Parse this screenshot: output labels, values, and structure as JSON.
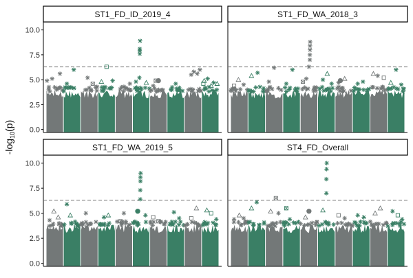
{
  "colors": {
    "grey": "#737878",
    "green": "#3a7f65",
    "threshold": "#6e6e6e",
    "strip_border": "#000000",
    "axis": "#000000"
  },
  "y_axis_label": {
    "prefix": "-log",
    "subscript": "10",
    "suffix": "(p)"
  },
  "chart_data": [
    {
      "type": "scatter",
      "subtitle": "ST1_FD_ID_2019_4",
      "ylim": [
        -0.3,
        10.8
      ],
      "yticks": [
        "0.0",
        "2.5",
        "5.0",
        "7.5",
        "10.0"
      ],
      "threshold": 6.3,
      "chromosome_count": 10,
      "background_level": 4.0,
      "outliers": [
        {
          "chr": 1,
          "pos": 0.05,
          "y": 4.9,
          "shape": "star"
        },
        {
          "chr": 1,
          "pos": 0.35,
          "y": 5.1,
          "shape": "star"
        },
        {
          "chr": 1,
          "pos": 0.8,
          "y": 5.6,
          "shape": "star"
        },
        {
          "chr": 2,
          "pos": 0.2,
          "y": 4.6,
          "shape": "star"
        },
        {
          "chr": 2,
          "pos": 0.6,
          "y": 6.0,
          "shape": "star"
        },
        {
          "chr": 3,
          "pos": 0.4,
          "y": 5.2,
          "shape": "star"
        },
        {
          "chr": 3,
          "pos": 0.7,
          "y": 4.6,
          "shape": "square-x"
        },
        {
          "chr": 4,
          "pos": 0.2,
          "y": 4.8,
          "shape": "triangle"
        },
        {
          "chr": 4,
          "pos": 0.5,
          "y": 6.3,
          "shape": "square"
        },
        {
          "chr": 4,
          "pos": 0.85,
          "y": 4.9,
          "shape": "star"
        },
        {
          "chr": 5,
          "pos": 0.5,
          "y": 4.3,
          "shape": "star"
        },
        {
          "chr": 5,
          "pos": 0.85,
          "y": 4.6,
          "shape": "star"
        },
        {
          "chr": 6,
          "pos": 0.2,
          "y": 4.8,
          "shape": "star"
        },
        {
          "chr": 6,
          "pos": 0.4,
          "y": 5.2,
          "shape": "star"
        },
        {
          "chr": 6,
          "pos": 0.42,
          "y": 7.6,
          "shape": "star"
        },
        {
          "chr": 6,
          "pos": 0.42,
          "y": 7.9,
          "shape": "star"
        },
        {
          "chr": 6,
          "pos": 0.42,
          "y": 8.1,
          "shape": "star"
        },
        {
          "chr": 6,
          "pos": 0.44,
          "y": 8.9,
          "shape": "star"
        },
        {
          "chr": 6,
          "pos": 0.8,
          "y": 4.7,
          "shape": "triangle"
        },
        {
          "chr": 7,
          "pos": 0.2,
          "y": 4.4,
          "shape": "star"
        },
        {
          "chr": 7,
          "pos": 0.35,
          "y": 4.9,
          "shape": "square-x"
        },
        {
          "chr": 7,
          "pos": 0.5,
          "y": 4.9,
          "shape": "octagon"
        },
        {
          "chr": 8,
          "pos": 0.5,
          "y": 4.6,
          "shape": "star"
        },
        {
          "chr": 9,
          "pos": 0.4,
          "y": 5.5,
          "shape": "star"
        },
        {
          "chr": 9,
          "pos": 0.55,
          "y": 5.8,
          "shape": "star"
        },
        {
          "chr": 9,
          "pos": 0.75,
          "y": 5.6,
          "shape": "star"
        },
        {
          "chr": 9,
          "pos": 0.9,
          "y": 6.0,
          "shape": "star"
        },
        {
          "chr": 10,
          "pos": 0.1,
          "y": 4.6,
          "shape": "square"
        },
        {
          "chr": 10,
          "pos": 0.15,
          "y": 4.9,
          "shape": "triangle"
        },
        {
          "chr": 10,
          "pos": 0.35,
          "y": 5.1,
          "shape": "star"
        },
        {
          "chr": 10,
          "pos": 0.55,
          "y": 4.4,
          "shape": "triangle"
        },
        {
          "chr": 10,
          "pos": 0.7,
          "y": 4.7,
          "shape": "star"
        },
        {
          "chr": 10,
          "pos": 0.9,
          "y": 4.6,
          "shape": "triangle"
        }
      ]
    },
    {
      "type": "scatter",
      "subtitle": "ST1_FD_WA_2018_3",
      "ylim": [
        -0.3,
        10.8
      ],
      "yticks": [
        "0.0",
        "2.5",
        "5.0",
        "7.5",
        "10.0"
      ],
      "threshold": 6.3,
      "chromosome_count": 10,
      "background_level": 4.0,
      "outliers": [
        {
          "chr": 1,
          "pos": 0.2,
          "y": 4.4,
          "shape": "square"
        },
        {
          "chr": 1,
          "pos": 0.45,
          "y": 5.0,
          "shape": "triangle"
        },
        {
          "chr": 1,
          "pos": 0.75,
          "y": 4.5,
          "shape": "star"
        },
        {
          "chr": 2,
          "pos": 0.2,
          "y": 5.4,
          "shape": "triangle"
        },
        {
          "chr": 2,
          "pos": 0.55,
          "y": 5.7,
          "shape": "star"
        },
        {
          "chr": 3,
          "pos": 0.2,
          "y": 4.8,
          "shape": "star"
        },
        {
          "chr": 3,
          "pos": 0.5,
          "y": 6.2,
          "shape": "star"
        },
        {
          "chr": 4,
          "pos": 0.2,
          "y": 4.6,
          "shape": "star"
        },
        {
          "chr": 4,
          "pos": 0.55,
          "y": 6.0,
          "shape": "star"
        },
        {
          "chr": 5,
          "pos": 0.15,
          "y": 4.8,
          "shape": "square-x"
        },
        {
          "chr": 5,
          "pos": 0.35,
          "y": 5.1,
          "shape": "star"
        },
        {
          "chr": 5,
          "pos": 0.5,
          "y": 6.3,
          "shape": "star"
        },
        {
          "chr": 5,
          "pos": 0.55,
          "y": 7.0,
          "shape": "star"
        },
        {
          "chr": 5,
          "pos": 0.55,
          "y": 7.5,
          "shape": "star"
        },
        {
          "chr": 5,
          "pos": 0.56,
          "y": 8.0,
          "shape": "star"
        },
        {
          "chr": 5,
          "pos": 0.56,
          "y": 8.4,
          "shape": "star"
        },
        {
          "chr": 5,
          "pos": 0.57,
          "y": 8.8,
          "shape": "star"
        },
        {
          "chr": 6,
          "pos": 0.3,
          "y": 5.0,
          "shape": "star"
        },
        {
          "chr": 6,
          "pos": 0.55,
          "y": 5.6,
          "shape": "triangle"
        },
        {
          "chr": 6,
          "pos": 0.8,
          "y": 4.6,
          "shape": "star"
        },
        {
          "chr": 7,
          "pos": 0.2,
          "y": 4.7,
          "shape": "star"
        },
        {
          "chr": 7,
          "pos": 0.3,
          "y": 4.9,
          "shape": "octagon"
        },
        {
          "chr": 7,
          "pos": 0.55,
          "y": 5.1,
          "shape": "triangle"
        },
        {
          "chr": 8,
          "pos": 0.3,
          "y": 4.6,
          "shape": "star"
        },
        {
          "chr": 8,
          "pos": 0.6,
          "y": 4.8,
          "shape": "star"
        },
        {
          "chr": 9,
          "pos": 0.2,
          "y": 5.6,
          "shape": "triangle"
        },
        {
          "chr": 9,
          "pos": 0.45,
          "y": 5.4,
          "shape": "star"
        },
        {
          "chr": 9,
          "pos": 0.8,
          "y": 5.2,
          "shape": "square"
        },
        {
          "chr": 10,
          "pos": 0.2,
          "y": 4.7,
          "shape": "triangle"
        },
        {
          "chr": 10,
          "pos": 0.5,
          "y": 6.0,
          "shape": "star"
        },
        {
          "chr": 10,
          "pos": 0.8,
          "y": 4.5,
          "shape": "star"
        }
      ]
    },
    {
      "type": "scatter",
      "subtitle": "ST1_FD_WA_2019_5",
      "ylim": [
        -0.3,
        10.8
      ],
      "yticks": [
        "0.0",
        "2.5",
        "5.0",
        "7.5",
        "10.0"
      ],
      "threshold": 6.3,
      "chromosome_count": 10,
      "background_level": 3.9,
      "outliers": [
        {
          "chr": 1,
          "pos": 0.2,
          "y": 4.3,
          "shape": "star"
        },
        {
          "chr": 1,
          "pos": 0.45,
          "y": 5.2,
          "shape": "triangle"
        },
        {
          "chr": 1,
          "pos": 0.7,
          "y": 4.6,
          "shape": "triangle"
        },
        {
          "chr": 2,
          "pos": 0.2,
          "y": 5.9,
          "shape": "star"
        },
        {
          "chr": 2,
          "pos": 0.4,
          "y": 4.8,
          "shape": "triangle"
        },
        {
          "chr": 3,
          "pos": 0.3,
          "y": 5.0,
          "shape": "star"
        },
        {
          "chr": 4,
          "pos": 0.35,
          "y": 4.6,
          "shape": "star"
        },
        {
          "chr": 4,
          "pos": 0.6,
          "y": 4.8,
          "shape": "triangle"
        },
        {
          "chr": 5,
          "pos": 0.3,
          "y": 4.2,
          "shape": "square-x"
        },
        {
          "chr": 5,
          "pos": 0.5,
          "y": 5.0,
          "shape": "star"
        },
        {
          "chr": 6,
          "pos": 0.3,
          "y": 5.2,
          "shape": "octagon"
        },
        {
          "chr": 6,
          "pos": 0.45,
          "y": 6.4,
          "shape": "star"
        },
        {
          "chr": 6,
          "pos": 0.45,
          "y": 7.3,
          "shape": "star"
        },
        {
          "chr": 6,
          "pos": 0.46,
          "y": 8.2,
          "shape": "star"
        },
        {
          "chr": 6,
          "pos": 0.46,
          "y": 8.6,
          "shape": "star"
        },
        {
          "chr": 6,
          "pos": 0.47,
          "y": 9.0,
          "shape": "star"
        },
        {
          "chr": 6,
          "pos": 0.75,
          "y": 4.8,
          "shape": "star"
        },
        {
          "chr": 7,
          "pos": 0.2,
          "y": 4.6,
          "shape": "square"
        },
        {
          "chr": 7,
          "pos": 0.5,
          "y": 4.2,
          "shape": "square-x"
        },
        {
          "chr": 8,
          "pos": 0.4,
          "y": 5.1,
          "shape": "star"
        },
        {
          "chr": 8,
          "pos": 0.7,
          "y": 4.5,
          "shape": "star"
        },
        {
          "chr": 9,
          "pos": 0.4,
          "y": 4.5,
          "shape": "square"
        },
        {
          "chr": 9,
          "pos": 0.7,
          "y": 5.5,
          "shape": "triangle"
        },
        {
          "chr": 10,
          "pos": 0.3,
          "y": 5.3,
          "shape": "triangle"
        },
        {
          "chr": 10,
          "pos": 0.55,
          "y": 5.0,
          "shape": "square"
        },
        {
          "chr": 10,
          "pos": 0.85,
          "y": 4.4,
          "shape": "star"
        }
      ]
    },
    {
      "type": "scatter",
      "subtitle": "ST4_FD_Overall",
      "ylim": [
        -0.3,
        10.8
      ],
      "yticks": [
        "0.0",
        "2.5",
        "5.0",
        "7.5",
        "10.0"
      ],
      "threshold": 6.3,
      "chromosome_count": 10,
      "background_level": 3.9,
      "outliers": [
        {
          "chr": 1,
          "pos": 0.2,
          "y": 4.4,
          "shape": "star"
        },
        {
          "chr": 1,
          "pos": 0.5,
          "y": 4.8,
          "shape": "triangle"
        },
        {
          "chr": 1,
          "pos": 0.75,
          "y": 4.5,
          "shape": "star"
        },
        {
          "chr": 2,
          "pos": 0.2,
          "y": 5.5,
          "shape": "triangle"
        },
        {
          "chr": 2,
          "pos": 0.5,
          "y": 6.1,
          "shape": "star"
        },
        {
          "chr": 3,
          "pos": 0.3,
          "y": 5.2,
          "shape": "triangle"
        },
        {
          "chr": 3,
          "pos": 0.6,
          "y": 6.5,
          "shape": "square-x"
        },
        {
          "chr": 3,
          "pos": 0.75,
          "y": 5.0,
          "shape": "star"
        },
        {
          "chr": 4,
          "pos": 0.2,
          "y": 5.5,
          "shape": "square-x"
        },
        {
          "chr": 4,
          "pos": 0.4,
          "y": 4.4,
          "shape": "star"
        },
        {
          "chr": 5,
          "pos": 0.3,
          "y": 4.6,
          "shape": "triangle"
        },
        {
          "chr": 5,
          "pos": 0.5,
          "y": 5.2,
          "shape": "octagon"
        },
        {
          "chr": 6,
          "pos": 0.3,
          "y": 5.3,
          "shape": "triangle"
        },
        {
          "chr": 6,
          "pos": 0.5,
          "y": 7.0,
          "shape": "star"
        },
        {
          "chr": 6,
          "pos": 0.5,
          "y": 8.4,
          "shape": "star"
        },
        {
          "chr": 6,
          "pos": 0.51,
          "y": 9.4,
          "shape": "star"
        },
        {
          "chr": 6,
          "pos": 0.52,
          "y": 10.0,
          "shape": "star"
        },
        {
          "chr": 7,
          "pos": 0.2,
          "y": 4.8,
          "shape": "square"
        },
        {
          "chr": 7,
          "pos": 0.55,
          "y": 4.5,
          "shape": "star"
        },
        {
          "chr": 8,
          "pos": 0.3,
          "y": 4.8,
          "shape": "star"
        },
        {
          "chr": 8,
          "pos": 0.65,
          "y": 4.6,
          "shape": "star"
        },
        {
          "chr": 9,
          "pos": 0.3,
          "y": 5.0,
          "shape": "triangle"
        },
        {
          "chr": 9,
          "pos": 0.6,
          "y": 5.5,
          "shape": "triangle"
        },
        {
          "chr": 10,
          "pos": 0.3,
          "y": 5.2,
          "shape": "star"
        },
        {
          "chr": 10,
          "pos": 0.6,
          "y": 4.8,
          "shape": "square"
        },
        {
          "chr": 10,
          "pos": 0.85,
          "y": 4.4,
          "shape": "star"
        }
      ]
    }
  ]
}
